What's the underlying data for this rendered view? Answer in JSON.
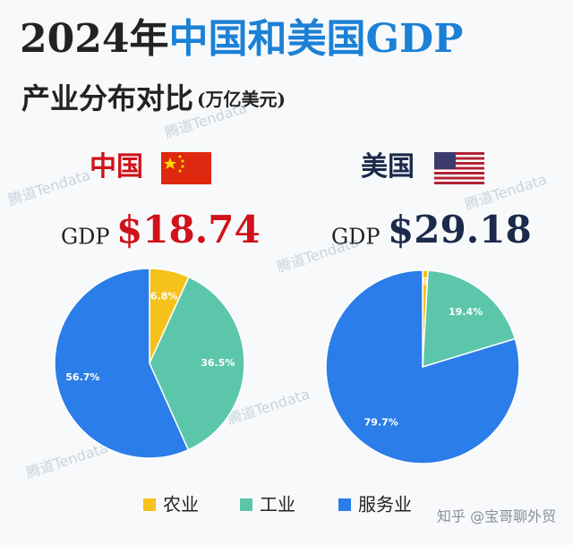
{
  "header": {
    "title_year": "2024年",
    "title_main": "中国和美国GDP",
    "subtitle": "产业分布对比",
    "unit": "(万亿美元)"
  },
  "chart_data": [
    {
      "type": "pie",
      "title": "中国",
      "gdp_label": "GDP",
      "total_label": "$18.74",
      "categories": [
        "农业",
        "工业",
        "服务业"
      ],
      "values": [
        6.8,
        36.5,
        56.7
      ],
      "value_labels": [
        "6.8%",
        "36.5%",
        "56.7%"
      ],
      "colors": [
        "#f5c21b",
        "#5cc6ab",
        "#2b7de9"
      ]
    },
    {
      "type": "pie",
      "title": "美国",
      "gdp_label": "GDP",
      "total_label": "$29.18",
      "categories": [
        "农业",
        "工业",
        "服务业"
      ],
      "values": [
        0.9,
        19.4,
        79.7
      ],
      "value_labels": [
        "0.9%",
        "19.4%",
        "79.7%"
      ],
      "colors": [
        "#f5c21b",
        "#5cc6ab",
        "#2b7de9"
      ]
    }
  ],
  "watermarks": {
    "brand": "腾道Tendata",
    "source": "知乎 @宝哥聊外贸"
  }
}
